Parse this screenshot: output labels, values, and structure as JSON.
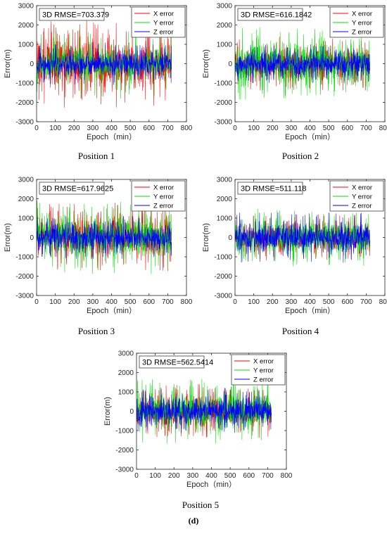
{
  "figure": {
    "label": "(d)"
  },
  "style": {
    "x_color": "#ff0000",
    "y_color": "#00dd00",
    "z_color": "#0000ff"
  },
  "chart_data": [
    {
      "type": "line",
      "caption": "Position 1",
      "annotation": "3D RMSE=703.379",
      "xlabel": "Epoch（min）",
      "ylabel": "Error(m)",
      "xlim": [
        0,
        800
      ],
      "ylim": [
        -3000,
        3000
      ],
      "xticks": [
        "0",
        "100",
        "200",
        "300",
        "400",
        "500",
        "600",
        "700",
        "800"
      ],
      "yticks": [
        "3000",
        "2000",
        "1000",
        "0",
        "-1000",
        "-2000",
        "-3000"
      ],
      "grid": false,
      "legend_position": "top-right",
      "epochs": [
        0,
        720
      ],
      "series": [
        {
          "name": "X error",
          "color": "#ff0000",
          "amplitude": 2300,
          "std": 680
        },
        {
          "name": "Y error",
          "color": "#00dd00",
          "amplitude": 1800,
          "std": 420
        },
        {
          "name": "Z error",
          "color": "#0000ff",
          "amplitude": 1100,
          "std": 340
        }
      ]
    },
    {
      "type": "line",
      "caption": "Position 2",
      "annotation": "3D RMSE=616.1842",
      "xlabel": "Epoch（min）",
      "ylabel": "Error(m)",
      "xlim": [
        0,
        800
      ],
      "ylim": [
        -3000,
        3000
      ],
      "xticks": [
        "0",
        "100",
        "200",
        "300",
        "400",
        "500",
        "600",
        "700",
        "800"
      ],
      "yticks": [
        "3000",
        "2000",
        "1000",
        "0",
        "-1000",
        "-2000",
        "-3000"
      ],
      "grid": false,
      "legend_position": "top-right",
      "epochs": [
        0,
        720
      ],
      "series": [
        {
          "name": "X error",
          "color": "#ff0000",
          "amplitude": 1400,
          "std": 400
        },
        {
          "name": "Y error",
          "color": "#00dd00",
          "amplitude": 1900,
          "std": 600
        },
        {
          "name": "Z error",
          "color": "#0000ff",
          "amplitude": 1000,
          "std": 330
        }
      ]
    },
    {
      "type": "line",
      "caption": "Position 3",
      "annotation": "3D RMSE=617.9625",
      "xlabel": "Epoch（min）",
      "ylabel": "Error(m)",
      "xlim": [
        0,
        800
      ],
      "ylim": [
        -3000,
        3000
      ],
      "xticks": [
        "0",
        "100",
        "200",
        "300",
        "400",
        "500",
        "600",
        "700",
        "800"
      ],
      "yticks": [
        "3000",
        "2000",
        "1000",
        "0",
        "-1000",
        "-2000",
        "-3000"
      ],
      "grid": false,
      "legend_position": "top-right",
      "epochs": [
        0,
        720
      ],
      "series": [
        {
          "name": "X error",
          "color": "#ff0000",
          "amplitude": 1800,
          "std": 520
        },
        {
          "name": "Y error",
          "color": "#00dd00",
          "amplitude": 1900,
          "std": 540
        },
        {
          "name": "Z error",
          "color": "#0000ff",
          "amplitude": 1100,
          "std": 360
        }
      ]
    },
    {
      "type": "line",
      "caption": "Position 4",
      "annotation": "3D RMSE=511.118",
      "xlabel": "Epoch（min）",
      "ylabel": "Error(m)",
      "xlim": [
        0,
        800
      ],
      "ylim": [
        -3000,
        3000
      ],
      "xticks": [
        "0",
        "100",
        "200",
        "300",
        "400",
        "500",
        "600",
        "700",
        "800"
      ],
      "yticks": [
        "3000",
        "2000",
        "1000",
        "0",
        "-1000",
        "-2000",
        "-3000"
      ],
      "grid": false,
      "legend_position": "top-right",
      "epochs": [
        0,
        720
      ],
      "series": [
        {
          "name": "X error",
          "color": "#ff0000",
          "amplitude": 1200,
          "std": 360
        },
        {
          "name": "Y error",
          "color": "#00dd00",
          "amplitude": 1500,
          "std": 430
        },
        {
          "name": "Z error",
          "color": "#0000ff",
          "amplitude": 1300,
          "std": 380
        }
      ]
    },
    {
      "type": "line",
      "caption": "Position 5",
      "annotation": "3D RMSE=562.5414",
      "xlabel": "Epoch（min）",
      "ylabel": "Error(m)",
      "xlim": [
        0,
        800
      ],
      "ylim": [
        -3000,
        3000
      ],
      "xticks": [
        "0",
        "100",
        "200",
        "300",
        "400",
        "500",
        "600",
        "700",
        "800"
      ],
      "yticks": [
        "3000",
        "2000",
        "1000",
        "0",
        "-1000",
        "-2000",
        "-3000"
      ],
      "grid": false,
      "legend_position": "top-right",
      "epochs": [
        0,
        720
      ],
      "series": [
        {
          "name": "X error",
          "color": "#ff0000",
          "amplitude": 1400,
          "std": 420
        },
        {
          "name": "Y error",
          "color": "#00dd00",
          "amplitude": 1700,
          "std": 500
        },
        {
          "name": "Z error",
          "color": "#0000ff",
          "amplitude": 1200,
          "std": 370
        }
      ]
    }
  ]
}
